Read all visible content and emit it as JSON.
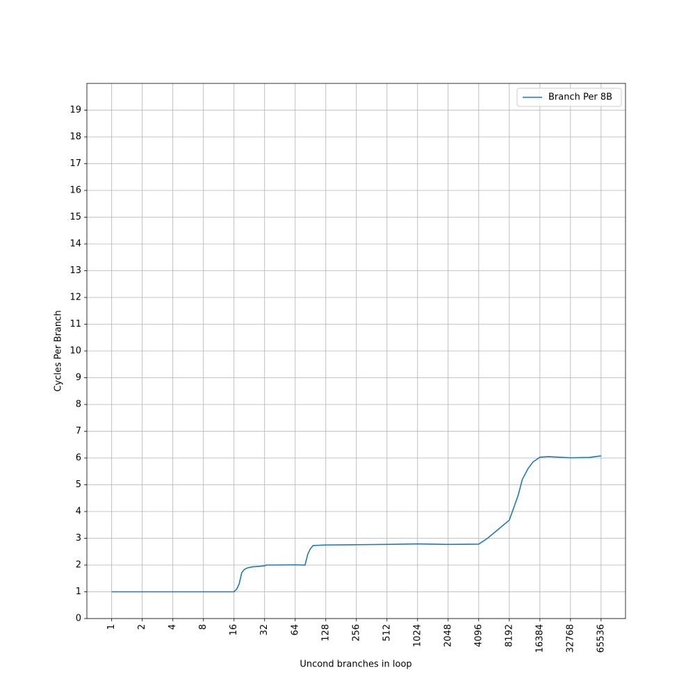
{
  "chart_data": {
    "type": "line",
    "xlabel": "Uncond branches in loop",
    "ylabel": "Cycles Per Branch",
    "x": [
      1,
      16,
      17,
      18,
      19,
      20,
      21,
      22,
      24,
      28,
      32,
      33,
      40,
      64,
      80,
      85,
      90,
      96,
      128,
      256,
      512,
      1024,
      2048,
      4096,
      5000,
      6000,
      8192,
      10000,
      11000,
      12500,
      14000,
      16384,
      20000,
      32768,
      50000,
      65536
    ],
    "series": [
      {
        "name": "Branch Per 8B",
        "color": "#1f77b4",
        "values": [
          1,
          1,
          1.1,
          1.3,
          1.7,
          1.82,
          1.87,
          1.9,
          1.93,
          1.95,
          1.97,
          2.0,
          2.0,
          2.01,
          2.0,
          2.4,
          2.6,
          2.73,
          2.75,
          2.76,
          2.77,
          2.79,
          2.77,
          2.78,
          3.0,
          3.25,
          3.68,
          4.6,
          5.2,
          5.6,
          5.85,
          6.03,
          6.05,
          6.01,
          6.02,
          6.08
        ]
      }
    ],
    "xscale": "log",
    "xbase": 2,
    "xlim": [
      0.57,
      114000
    ],
    "xticks": [
      1,
      2,
      4,
      8,
      16,
      32,
      64,
      128,
      256,
      512,
      1024,
      2048,
      4096,
      8192,
      16384,
      32768,
      65536
    ],
    "ylim": [
      0,
      20
    ],
    "yticks": [
      0,
      1,
      2,
      3,
      4,
      5,
      6,
      7,
      8,
      9,
      10,
      11,
      12,
      13,
      14,
      15,
      16,
      17,
      18,
      19
    ],
    "grid": true,
    "legend": "upper right"
  }
}
